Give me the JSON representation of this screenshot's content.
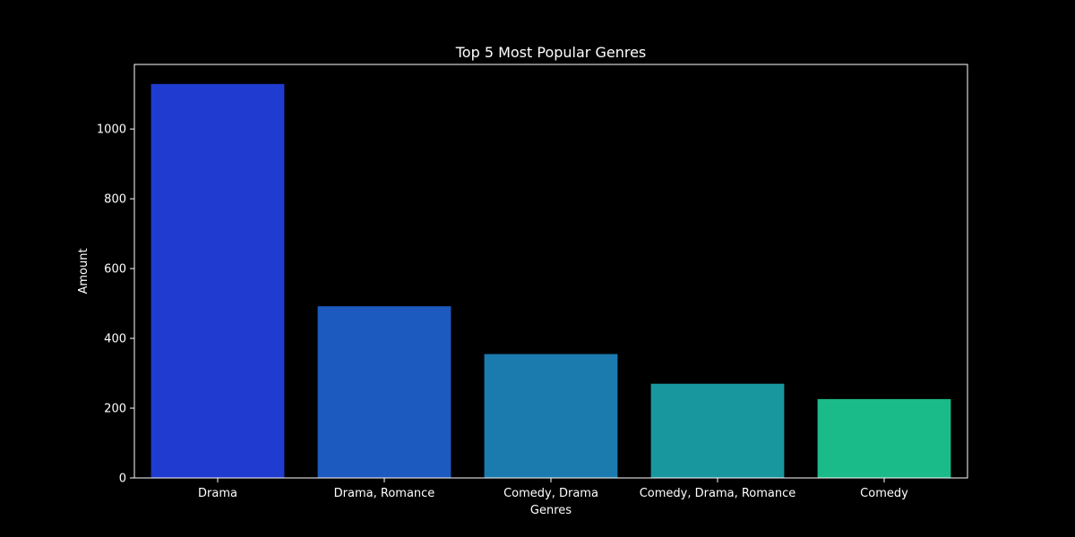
{
  "chart_data": {
    "type": "bar",
    "title": "Top 5 Most Popular Genres",
    "xlabel": "Genres",
    "ylabel": "Amount",
    "categories": [
      "Drama",
      "Drama, Romance",
      "Comedy, Drama",
      "Comedy, Drama, Romance",
      "Comedy"
    ],
    "values": [
      1129,
      492,
      355,
      270,
      226
    ],
    "ylim": [
      0,
      1185
    ],
    "yticks": [
      0,
      200,
      400,
      600,
      800,
      1000
    ],
    "colors": [
      "#1f3bd0",
      "#1c5abf",
      "#1b7aae",
      "#18979e",
      "#1bbb89"
    ],
    "grid": false,
    "legend": "none"
  },
  "colors": {
    "background": "#000000",
    "axes": "#ffffff",
    "text": "#ffffff"
  }
}
